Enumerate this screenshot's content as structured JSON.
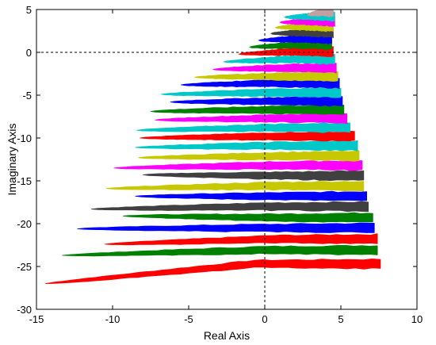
{
  "chart_data": {
    "type": "scatter",
    "title": "",
    "xlabel": "Real Axis",
    "ylabel": "Imaginary Axis",
    "xlim": [
      -15,
      10
    ],
    "ylim": [
      -30,
      5
    ],
    "xticks": [
      -15,
      -10,
      -5,
      0,
      5,
      10
    ],
    "yticks": [
      -30,
      -25,
      -20,
      -15,
      -10,
      -5,
      0,
      5
    ],
    "xtick_labels": [
      "-15",
      "-10",
      "-5",
      "0",
      "5",
      "10"
    ],
    "ytick_labels": [
      "-30",
      "-25",
      "-20",
      "-15",
      "-10",
      "-5",
      "0",
      "5"
    ],
    "grid": false,
    "reference_lines": {
      "x": 0,
      "y": 0,
      "style": "dashed"
    },
    "band_colors": [
      "#ff0000",
      "#008000",
      "#0000ff",
      "#404040",
      "#c8c800",
      "#ff00ff",
      "#00c8c8"
    ],
    "series": [
      {
        "color": "#c0a0a0",
        "y": 4.7,
        "xmin": 2.8,
        "xmax": 4.5,
        "tip_y": 4.4
      },
      {
        "color": "#00c8c8",
        "y": 4.2,
        "xmin": 1.3,
        "xmax": 4.6,
        "tip_y": 4.1
      },
      {
        "color": "#ff00ff",
        "y": 3.6,
        "xmin": 1.0,
        "xmax": 4.6,
        "tip_y": 3.5
      },
      {
        "color": "#c8c800",
        "y": 3.0,
        "xmin": 0.7,
        "xmax": 4.5,
        "tip_y": 2.9
      },
      {
        "color": "#404040",
        "y": 2.3,
        "xmin": 0.4,
        "xmax": 4.5,
        "tip_y": 2.2
      },
      {
        "color": "#0000ff",
        "y": 1.6,
        "xmin": -0.4,
        "xmax": 4.4,
        "tip_y": 1.4
      },
      {
        "color": "#008000",
        "y": 0.9,
        "xmin": -1.0,
        "xmax": 4.4,
        "tip_y": 0.6
      },
      {
        "color": "#ff0000",
        "y": 0.1,
        "xmin": -1.7,
        "xmax": 4.5,
        "tip_y": -0.2
      },
      {
        "color": "#00c8c8",
        "y": -0.8,
        "xmin": -2.7,
        "xmax": 4.6,
        "tip_y": -1.1
      },
      {
        "color": "#ff00ff",
        "y": -1.8,
        "xmin": -3.4,
        "xmax": 4.7,
        "tip_y": -2.0
      },
      {
        "color": "#c8c800",
        "y": -2.8,
        "xmin": -4.6,
        "xmax": 4.8,
        "tip_y": -2.9
      },
      {
        "color": "#0000ff",
        "y": -3.6,
        "xmin": -5.5,
        "xmax": 4.9,
        "tip_y": -3.8
      },
      {
        "color": "#00c8c8",
        "y": -4.7,
        "xmin": -6.8,
        "xmax": 5.0,
        "tip_y": -4.9
      },
      {
        "color": "#0000ff",
        "y": -5.7,
        "xmin": -6.2,
        "xmax": 5.1,
        "tip_y": -5.8
      },
      {
        "color": "#008000",
        "y": -6.7,
        "xmin": -7.5,
        "xmax": 5.2,
        "tip_y": -6.9
      },
      {
        "color": "#ff00ff",
        "y": -7.7,
        "xmin": -7.2,
        "xmax": 5.4,
        "tip_y": -7.9
      },
      {
        "color": "#00c8c8",
        "y": -8.8,
        "xmin": -8.4,
        "xmax": 5.6,
        "tip_y": -9.1
      },
      {
        "color": "#ff0000",
        "y": -9.8,
        "xmin": -8.2,
        "xmax": 5.9,
        "tip_y": -10.0
      },
      {
        "color": "#00c8c8",
        "y": -10.9,
        "xmin": -8.5,
        "xmax": 6.1,
        "tip_y": -11.1
      },
      {
        "color": "#c8c800",
        "y": -12.1,
        "xmin": -8.3,
        "xmax": 6.2,
        "tip_y": -12.3
      },
      {
        "color": "#ff00ff",
        "y": -13.2,
        "xmin": -9.9,
        "xmax": 6.4,
        "tip_y": -13.5
      },
      {
        "color": "#404040",
        "y": -14.4,
        "xmin": -8.0,
        "xmax": 6.5,
        "tip_y": -14.3
      },
      {
        "color": "#c8c800",
        "y": -15.6,
        "xmin": -10.4,
        "xmax": 6.5,
        "tip_y": -15.9
      },
      {
        "color": "#0000ff",
        "y": -16.8,
        "xmin": -8.5,
        "xmax": 6.7,
        "tip_y": -16.8
      },
      {
        "color": "#404040",
        "y": -18.0,
        "xmin": -11.4,
        "xmax": 6.8,
        "tip_y": -18.3
      },
      {
        "color": "#008000",
        "y": -19.3,
        "xmin": -9.3,
        "xmax": 7.1,
        "tip_y": -19.1
      },
      {
        "color": "#0000ff",
        "y": -20.5,
        "xmin": -12.3,
        "xmax": 7.2,
        "tip_y": -20.6
      },
      {
        "color": "#ff0000",
        "y": -21.8,
        "xmin": -10.5,
        "xmax": 7.4,
        "tip_y": -22.4
      },
      {
        "color": "#008000",
        "y": -23.1,
        "xmin": -13.3,
        "xmax": 7.4,
        "tip_y": -23.7
      },
      {
        "color": "#ff0000",
        "y": -24.7,
        "xmin": -14.4,
        "xmax": 7.6,
        "tip_y": -27.0
      }
    ]
  }
}
